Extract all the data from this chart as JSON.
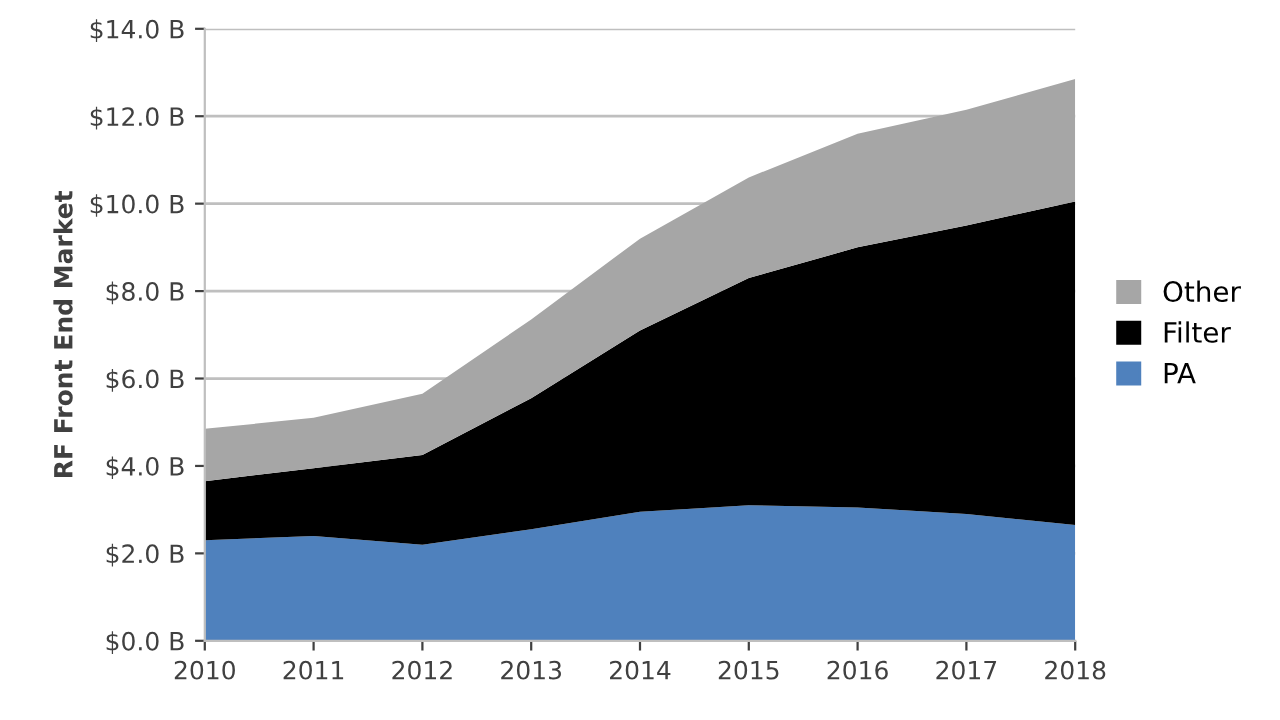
{
  "chart_data": {
    "type": "area",
    "stacked": true,
    "ylabel": "RF Front End Market",
    "categories": [
      "2010",
      "2011",
      "2012",
      "2013",
      "2014",
      "2015",
      "2016",
      "2017",
      "2018"
    ],
    "series": [
      {
        "name": "PA",
        "color": "#4f81bd",
        "values": [
          2.3,
          2.4,
          2.2,
          2.55,
          2.95,
          3.1,
          3.05,
          2.9,
          2.65
        ]
      },
      {
        "name": "Filter",
        "color": "#000000",
        "values": [
          1.35,
          1.55,
          2.05,
          3.0,
          4.15,
          5.2,
          5.95,
          6.6,
          7.4
        ]
      },
      {
        "name": "Other",
        "color": "#a6a6a6",
        "values": [
          1.2,
          1.15,
          1.4,
          1.8,
          2.1,
          2.3,
          2.6,
          2.65,
          2.8
        ]
      }
    ],
    "ylim": [
      0,
      14
    ],
    "yticks": [
      {
        "value": 0,
        "label": "$0.0 B"
      },
      {
        "value": 2,
        "label": "$2.0 B"
      },
      {
        "value": 4,
        "label": "$4.0 B"
      },
      {
        "value": 6,
        "label": "$6.0 B"
      },
      {
        "value": 8,
        "label": "$8.0 B"
      },
      {
        "value": 10,
        "label": "$10.0 B"
      },
      {
        "value": 12,
        "label": "$12.0 B"
      },
      {
        "value": 14,
        "label": "$14.0 B"
      }
    ],
    "grid": "y",
    "legend": "right"
  }
}
